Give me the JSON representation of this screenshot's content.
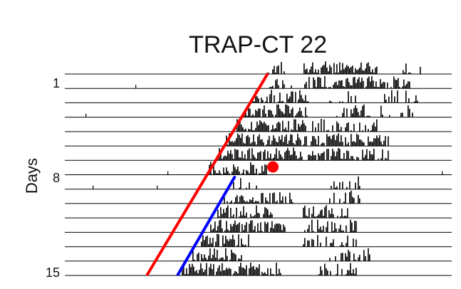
{
  "chart_data": {
    "type": "actogram",
    "title": "TRAP-CT 22",
    "ylabel": "Days",
    "y_tick_labels": [
      "1",
      "8",
      "15"
    ],
    "days": 15,
    "grid": "horizontal baselines per day",
    "colors": {
      "activity": "#000000",
      "baseline": "#000000",
      "red_line": "#ff0000",
      "blue_line": "#0000ff",
      "marker": "#ff0000"
    },
    "annotations": {
      "red_line": {
        "from_day": 1,
        "to_day": 15
      },
      "blue_line": {
        "from_day": 8,
        "to_day": 15
      },
      "marker": {
        "day": 8
      }
    }
  }
}
